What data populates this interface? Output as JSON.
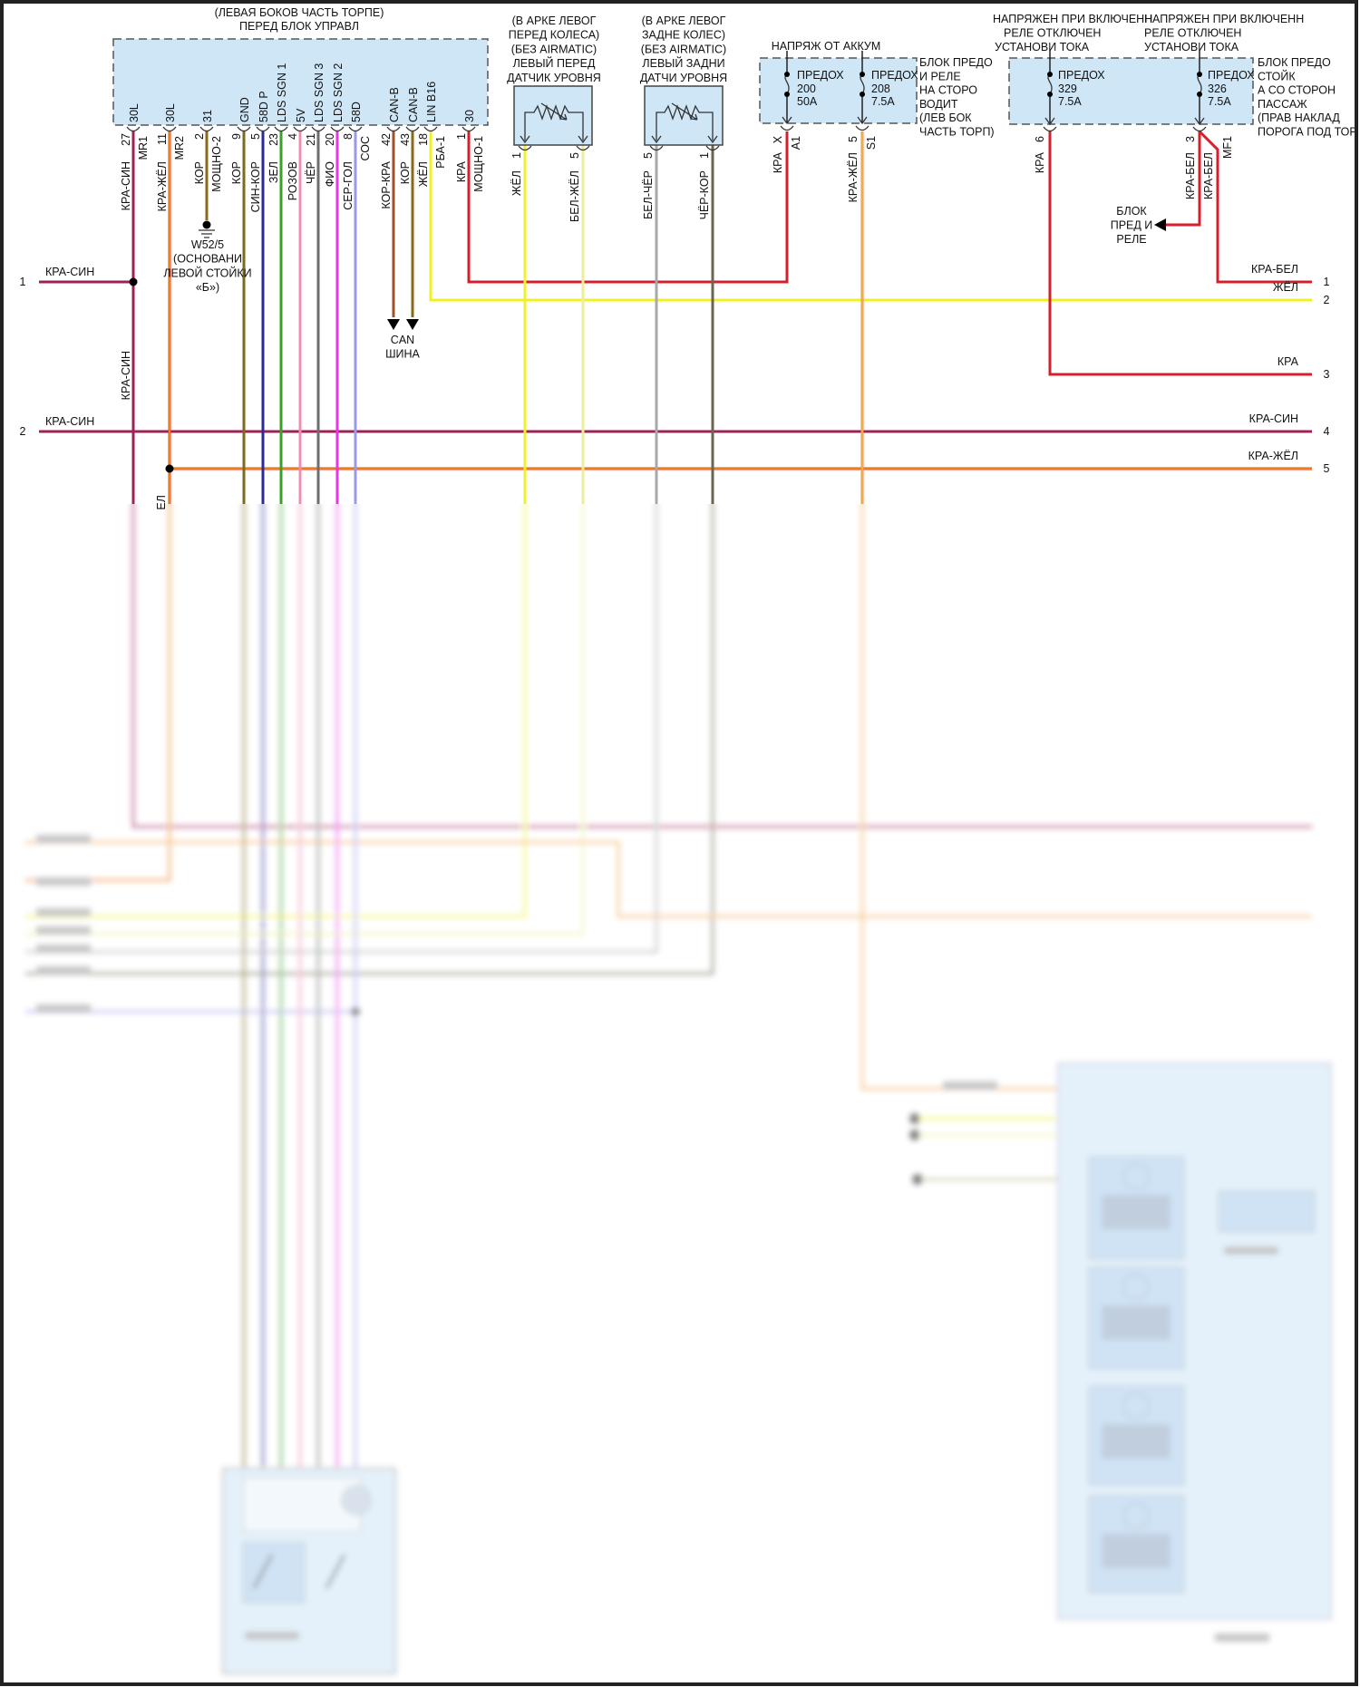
{
  "connector": {
    "title": [
      "(ЛЕВАЯ БОКОВ ЧАСТЬ ТОРПЕ)",
      "ПЕРЕД БЛОК УПРАВЛ"
    ],
    "pins": [
      {
        "label": "30L",
        "number": "27",
        "code": "MR1",
        "wire": "КРА-СИН",
        "color": "#a0205a"
      },
      {
        "label": "30L",
        "number": "11",
        "code": "MR2",
        "wire": "КРА-ЖЁЛ",
        "color": "#e8401a"
      },
      {
        "label": "31",
        "number": "2",
        "code": "МОЩНО-2",
        "wire": "КОР",
        "color": "#8a6a1a"
      },
      {
        "label": "GND",
        "number": "9",
        "code": "",
        "wire": "КОР",
        "color": "#7c6b1e"
      },
      {
        "label": "58D P",
        "number": "5",
        "code": "",
        "wire": "СИН-КОР",
        "color": "#2b2b98"
      },
      {
        "label": "LDS SGN 1",
        "number": "23",
        "code": "",
        "wire": "ЗЕЛ",
        "color": "#3aa02a"
      },
      {
        "label": "5V",
        "number": "4",
        "code": "",
        "wire": "РОЗОВ",
        "color": "#f08cb4"
      },
      {
        "label": "LDS SGN 3",
        "number": "21",
        "code": "",
        "wire": "ЧЁР",
        "color": "#6e6e6e"
      },
      {
        "label": "LDS SGN 2",
        "number": "20",
        "code": "",
        "wire": "ФИО",
        "color": "#e636e6"
      },
      {
        "label": "58D",
        "number": "8",
        "code": "СОС",
        "wire": "СЕР-ГОЛ",
        "color": "#9a9ae6"
      },
      {
        "label": "CAN-B",
        "number": "42",
        "code": "",
        "wire": "КОР-КРА",
        "color": "#a0522d"
      },
      {
        "label": "CAN-B",
        "number": "43",
        "code": "",
        "wire": "КОР",
        "color": "#8a6a1a"
      },
      {
        "label": "LIN B16",
        "number": "18",
        "code": "РБА-1",
        "wire": "ЖЁЛ",
        "color": "#f2f020"
      },
      {
        "label": "30",
        "number": "1",
        "code": "МОЩНО-1",
        "wire": "КРА",
        "color": "#d4202c"
      }
    ]
  },
  "ground": {
    "lines": [
      "W52/5",
      "(ОСНОВАНИ",
      "ЛЕВОЙ СТОЙКИ",
      "«Б»)"
    ]
  },
  "can_bus": {
    "lines": [
      "CAN",
      "ШИНА"
    ]
  },
  "sensors": [
    {
      "title": [
        "(В АРКЕ ЛЕВОГ",
        "ПЕРЕД КОЛЕСА)",
        "(БЕЗ AIRMATIC)",
        "ЛЕВЫЙ ПЕРЕД",
        "ДАТЧИК УРОВНЯ"
      ],
      "pins": [
        {
          "number": "1",
          "wire": "ЖЁЛ",
          "color": "#f2f02a"
        },
        {
          "number": "5",
          "wire": "БЕЛ-ЖЁЛ",
          "color": "#eeee9a"
        }
      ]
    },
    {
      "title": [
        "(В АРКЕ ЛЕВОГ",
        "ЗАДНЕ КОЛЕС)",
        "(БЕЗ AIRMATIC)",
        "ЛЕВЫЙ ЗАДНИ",
        "ДАТЧИ УРОВНЯ"
      ],
      "pins": [
        {
          "number": "5",
          "wire": "БЕЛ-ЧЁР",
          "color": "#a8a8a8"
        },
        {
          "number": "1",
          "wire": "ЧЁР-КОР",
          "color": "#6b6650"
        }
      ]
    }
  ],
  "fuse_box_driver": {
    "supply": "НАПРЯЖ ОТ АККУМ",
    "label": [
      "БЛОК ПРЕДО",
      "И РЕЛЕ",
      "НА СТОРО",
      "ВОДИТ",
      "(ЛЕВ БОК",
      "ЧАСТЬ ТОРП)"
    ],
    "fuses": [
      {
        "name": "ПРЕДОХ",
        "number": "200",
        "rating": "50A",
        "pin": "X",
        "code": "A1",
        "wire": "КРА"
      },
      {
        "name": "ПРЕДОХ",
        "number": "208",
        "rating": "7.5A",
        "pin": "5",
        "code": "S1",
        "wire": "КРА-ЖЁЛ"
      }
    ]
  },
  "fuse_box_passenger": {
    "supplies": [
      [
        "НАПРЯЖЕН ПРИ ВКЛЮЧЕНН",
        "РЕЛЕ ОТКЛЮЧЕН",
        "УСТАНОВИ ТОКА"
      ],
      [
        "НАПРЯЖЕН ПРИ ВКЛЮЧЕНН",
        "РЕЛЕ ОТКЛЮЧЕН",
        "УСТАНОВИ ТОКА"
      ]
    ],
    "label": [
      "БЛОК ПРЕДО",
      "СТОЙК",
      "А СО СТОРОН",
      "ПАССАЖ",
      "(ПРАВ НАКЛАД",
      "ПОРОГА ПОД ТОР"
    ],
    "fuses": [
      {
        "name": "ПРЕДОХ",
        "number": "329",
        "rating": "7.5A",
        "pin": "6",
        "wire": "КРА"
      },
      {
        "name": "ПРЕДОХ",
        "number": "326",
        "rating": "7.5A",
        "pin": "3",
        "wire": "КРА-БЕЛ",
        "wire2": "КРА-БЕЛ",
        "code2": "MF1"
      }
    ],
    "relay_ref": [
      "БЛОК",
      "ПРЕД И",
      "РЕЛЕ"
    ]
  },
  "left_rows": [
    {
      "number": "1",
      "wire": "КРА-СИН"
    },
    {
      "number": "2",
      "wire": "КРА-СИН"
    }
  ],
  "vertical_label": "КРА-СИН",
  "partial_label": "ЕЛ",
  "right_rows": [
    {
      "number": "1",
      "wire": "КРА-БЕЛ"
    },
    {
      "number": "2",
      "wire": "ЖЁЛ"
    },
    {
      "number": "3",
      "wire": "КРА"
    },
    {
      "number": "4",
      "wire": "КРА-СИН"
    },
    {
      "number": "5",
      "wire": "КРА-ЖЁЛ"
    }
  ],
  "colors": {
    "box_fill": "#cfe6f7",
    "red": "#d4202c",
    "red_white": "#d4202c",
    "yellow": "#f2f020",
    "orange": "#f08a5a"
  }
}
